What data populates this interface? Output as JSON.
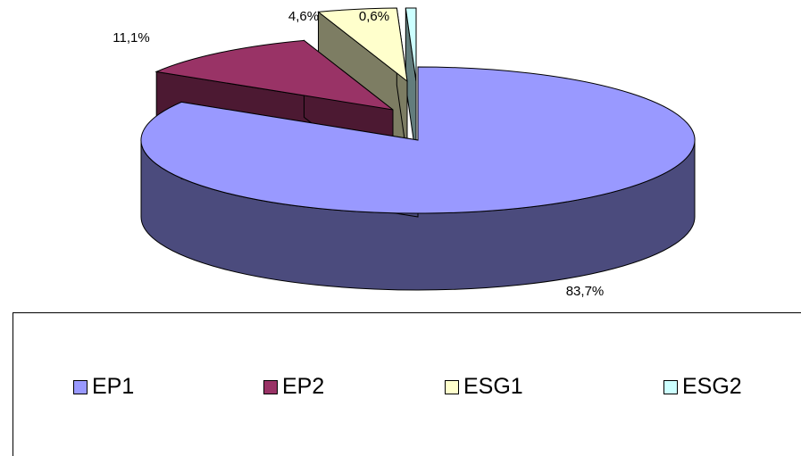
{
  "chart_data": {
    "type": "pie",
    "style": "3d-exploded",
    "categories": [
      "EP1",
      "EP2",
      "ESG1",
      "ESG2"
    ],
    "values": [
      83.7,
      11.1,
      4.6,
      0.6
    ],
    "labels": [
      "83,7%",
      "11,1%",
      "4,6%",
      "0,6%"
    ],
    "colors": {
      "EP1": "#9999ff",
      "EP2": "#993366",
      "ESG1": "#ffffcc",
      "ESG2": "#ccffff"
    },
    "side_colors": {
      "EP1": "#4b4b7d",
      "EP2": "#4c1932",
      "ESG1": "#7d7d63",
      "ESG2": "#637d7d"
    },
    "legend": {
      "position": "bottom",
      "entries": [
        "EP1",
        "EP2",
        "ESG1",
        "ESG2"
      ]
    }
  }
}
